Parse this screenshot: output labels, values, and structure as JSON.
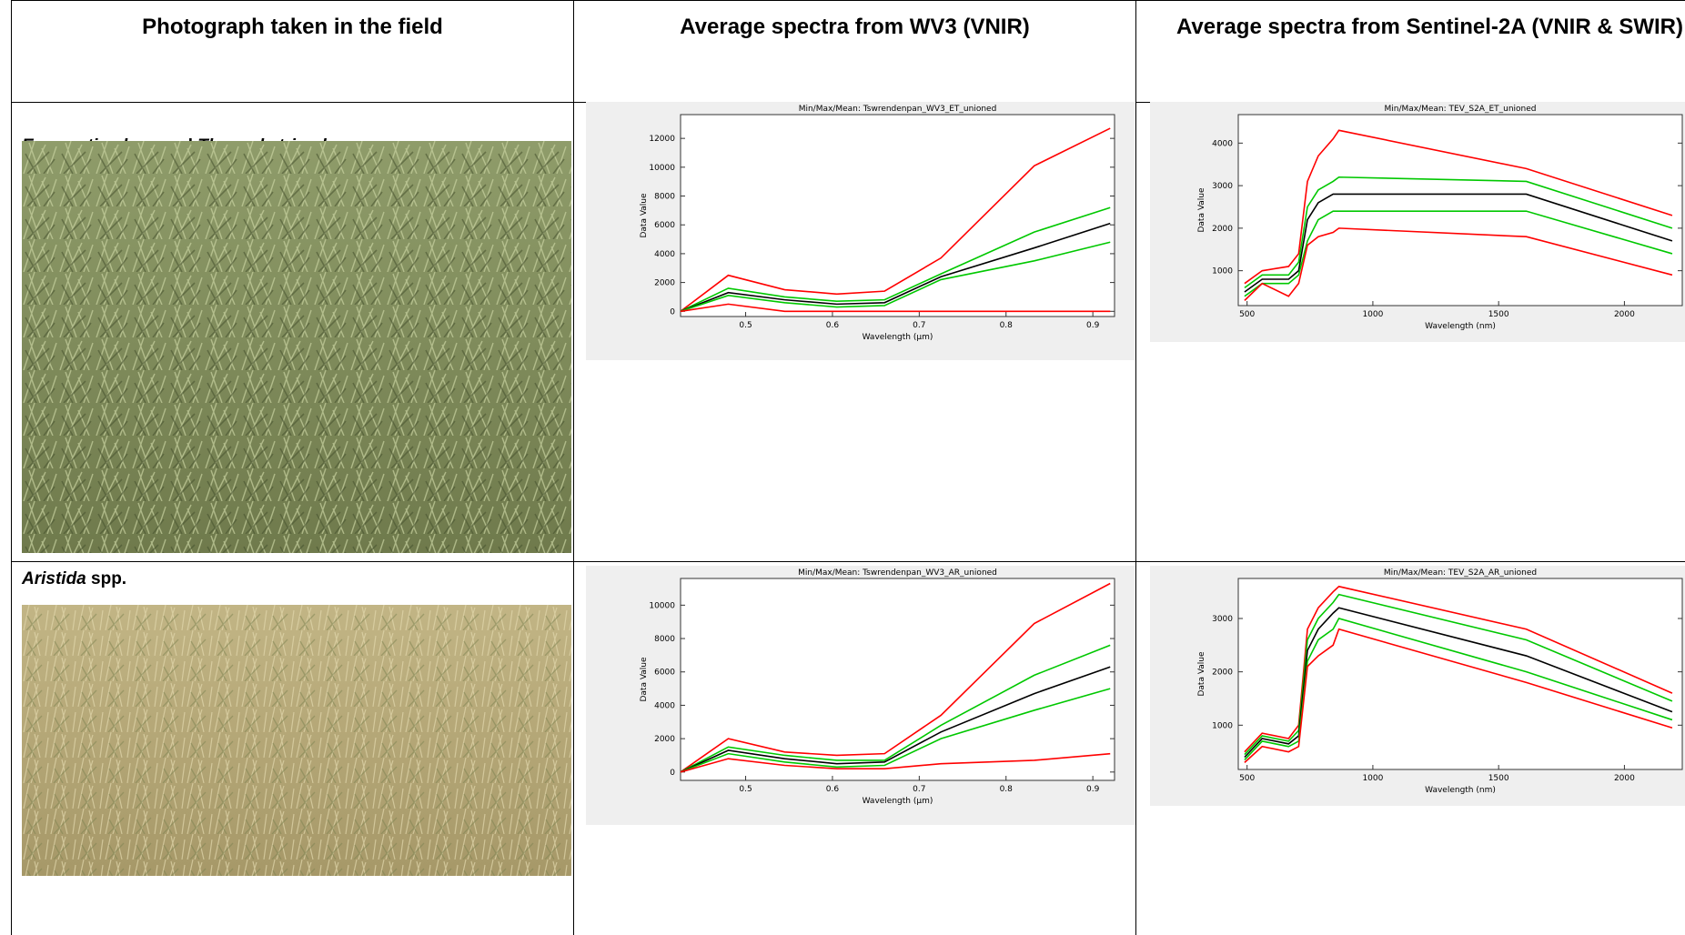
{
  "header": {
    "columns": [
      "Photograph taken in the field",
      "Average spectra from WV3 (VNIR)",
      "Average spectra from Sentinel-2A (VNIR & SWIR)"
    ]
  },
  "rows": [
    {
      "label": [
        {
          "text": "Eragrostis plana",
          "italic": true
        },
        {
          "text": " and ",
          "italic": false
        },
        {
          "text": "Themeda triandra",
          "italic": true
        }
      ],
      "charts": [
        {
          "type": "line",
          "title": "Min/Max/Mean: Tswrendenpan_WV3_ET_unioned",
          "x_label": "Wavelength (μm)",
          "y_label": "Data Value",
          "x": [
            0.425,
            0.48,
            0.545,
            0.605,
            0.66,
            0.725,
            0.8325,
            0.92
          ],
          "xlim": [
            0.425,
            0.925
          ],
          "xticks": [
            0.5,
            0.6,
            0.7,
            0.8,
            0.9
          ],
          "ylim": [
            -360,
            13650
          ],
          "yticks": [
            0,
            2000,
            4000,
            6000,
            8000,
            10000,
            12000
          ],
          "series": [
            {
              "color": "#ff0000",
              "values": [
                0,
                2500,
                1500,
                1200,
                1400,
                3700,
                10100,
                12700
              ]
            },
            {
              "color": "#00c800",
              "values": [
                0,
                1600,
                1000,
                700,
                800,
                2600,
                5500,
                7200
              ]
            },
            {
              "color": "#000000",
              "values": [
                0,
                1300,
                800,
                500,
                600,
                2400,
                4400,
                6100
              ]
            },
            {
              "color": "#00c800",
              "values": [
                0,
                1100,
                600,
                300,
                400,
                2200,
                3500,
                4800
              ]
            },
            {
              "color": "#ff0000",
              "values": [
                0,
                500,
                0,
                0,
                0,
                0,
                0,
                0
              ]
            }
          ]
        },
        {
          "type": "line",
          "title": "Min/Max/Mean: TEV_S2A_ET_unioned",
          "x_label": "Wavelength (nm)",
          "y_label": "Data Value",
          "x": [
            490,
            560,
            665,
            705,
            740,
            783,
            842,
            865,
            1610,
            2190
          ],
          "xlim": [
            465,
            2230
          ],
          "xticks": [
            500,
            1000,
            1500,
            2000
          ],
          "ylim": [
            180,
            4670
          ],
          "yticks": [
            1000,
            2000,
            3000,
            4000
          ],
          "series": [
            {
              "color": "#ff0000",
              "values": [
                700,
                1000,
                1100,
                1400,
                3100,
                3700,
                4100,
                4300,
                3400,
                2300
              ]
            },
            {
              "color": "#00c800",
              "values": [
                600,
                900,
                900,
                1200,
                2500,
                2900,
                3100,
                3200,
                3100,
                2000
              ]
            },
            {
              "color": "#000000",
              "values": [
                500,
                800,
                800,
                1000,
                2200,
                2600,
                2800,
                2800,
                2800,
                1700
              ]
            },
            {
              "color": "#00c800",
              "values": [
                400,
                700,
                700,
                900,
                1700,
                2200,
                2400,
                2400,
                2400,
                1400
              ]
            },
            {
              "color": "#ff0000",
              "values": [
                300,
                700,
                400,
                700,
                1600,
                1800,
                1900,
                2000,
                1800,
                900
              ]
            }
          ]
        }
      ]
    },
    {
      "label": [
        {
          "text": "Aristida",
          "italic": true
        },
        {
          "text": " spp.",
          "italic": false
        }
      ],
      "charts": [
        {
          "type": "line",
          "title": "Min/Max/Mean: Tswrendenpan_WV3_AR_unioned",
          "x_label": "Wavelength (μm)",
          "y_label": "Data Value",
          "x": [
            0.425,
            0.48,
            0.545,
            0.605,
            0.66,
            0.725,
            0.8325,
            0.92
          ],
          "xlim": [
            0.425,
            0.925
          ],
          "xticks": [
            0.5,
            0.6,
            0.7,
            0.8,
            0.9
          ],
          "ylim": [
            -500,
            11600
          ],
          "yticks": [
            0,
            2000,
            4000,
            6000,
            8000,
            10000
          ],
          "series": [
            {
              "color": "#ff0000",
              "values": [
                0,
                2000,
                1200,
                1000,
                1100,
                3400,
                8900,
                11300
              ]
            },
            {
              "color": "#00c800",
              "values": [
                0,
                1500,
                1000,
                700,
                700,
                2800,
                5800,
                7600
              ]
            },
            {
              "color": "#000000",
              "values": [
                0,
                1300,
                800,
                500,
                600,
                2400,
                4700,
                6300
              ]
            },
            {
              "color": "#00c800",
              "values": [
                0,
                1100,
                600,
                300,
                400,
                2000,
                3700,
                5000
              ]
            },
            {
              "color": "#ff0000",
              "values": [
                0,
                800,
                400,
                200,
                200,
                500,
                700,
                1100
              ]
            }
          ]
        },
        {
          "type": "line",
          "title": "Min/Max/Mean: TEV_S2A_AR_unioned",
          "x_label": "Wavelength (nm)",
          "y_label": "Data Value",
          "x": [
            490,
            560,
            665,
            705,
            740,
            783,
            842,
            865,
            1610,
            2190
          ],
          "xlim": [
            465,
            2230
          ],
          "xticks": [
            500,
            1000,
            1500,
            2000
          ],
          "ylim": [
            170,
            3750
          ],
          "yticks": [
            1000,
            2000,
            3000
          ],
          "series": [
            {
              "color": "#ff0000",
              "values": [
                500,
                850,
                750,
                1000,
                2800,
                3200,
                3500,
                3600,
                2800,
                1600
              ]
            },
            {
              "color": "#00c800",
              "values": [
                450,
                800,
                700,
                900,
                2600,
                3000,
                3300,
                3450,
                2600,
                1450
              ]
            },
            {
              "color": "#000000",
              "values": [
                400,
                750,
                650,
                800,
                2400,
                2800,
                3100,
                3200,
                2300,
                1250
              ]
            },
            {
              "color": "#00c800",
              "values": [
                350,
                700,
                600,
                700,
                2200,
                2600,
                2800,
                3000,
                2000,
                1100
              ]
            },
            {
              "color": "#ff0000",
              "values": [
                300,
                600,
                500,
                600,
                2100,
                2300,
                2500,
                2800,
                1800,
                950
              ]
            }
          ]
        }
      ]
    }
  ]
}
